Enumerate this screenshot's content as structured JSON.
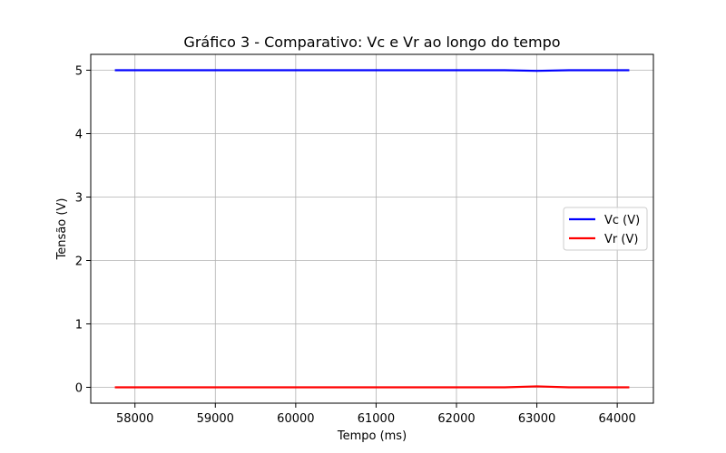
{
  "chart_data": {
    "type": "line",
    "title": "Gráfico 3 - Comparativo: Vc e Vr ao longo do tempo",
    "xlabel": "Tempo (ms)",
    "ylabel": "Tensão (V)",
    "xlim": [
      57450,
      64450
    ],
    "ylim": [
      -0.25,
      5.25
    ],
    "xticks": [
      58000,
      59000,
      60000,
      61000,
      62000,
      63000,
      64000
    ],
    "yticks": [
      0,
      1,
      2,
      3,
      4,
      5
    ],
    "grid": true,
    "legend_position": "center-right",
    "series": [
      {
        "name": "Vc (V)",
        "color": "#0000ff",
        "x": [
          57750,
          58200,
          58700,
          59200,
          59700,
          60200,
          60700,
          61200,
          61700,
          62200,
          62600,
          63000,
          63400,
          63800,
          64150
        ],
        "y": [
          5.0,
          5.0,
          5.0,
          5.0,
          5.0,
          5.0,
          5.0,
          5.0,
          5.0,
          5.0,
          5.0,
          4.99,
          5.0,
          5.0,
          5.0
        ]
      },
      {
        "name": "Vr (V)",
        "color": "#ff0000",
        "x": [
          57750,
          58200,
          58700,
          59200,
          59700,
          60200,
          60700,
          61200,
          61700,
          62200,
          62600,
          63000,
          63400,
          63800,
          64150
        ],
        "y": [
          0.0,
          0.0,
          0.0,
          0.0,
          0.0,
          0.0,
          0.0,
          0.0,
          0.0,
          0.0,
          0.0,
          0.015,
          0.0,
          0.0,
          0.0
        ]
      }
    ]
  }
}
